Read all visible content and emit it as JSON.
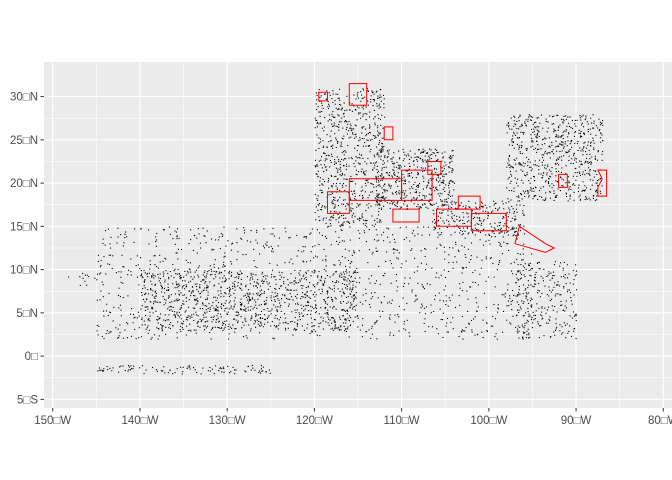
{
  "chart_data": {
    "type": "scatter",
    "title": "",
    "xlabel": "",
    "ylabel": "",
    "xlim": [
      -151,
      -79
    ],
    "ylim": [
      -6,
      34
    ],
    "grid": true,
    "panel_color": "#ebebeb",
    "grid_color": "#ffffff",
    "point_color": "#000000",
    "polygon_color": "#ff0000",
    "x_ticks": [
      {
        "value": -150,
        "label": "150□W"
      },
      {
        "value": -140,
        "label": "140□W"
      },
      {
        "value": -130,
        "label": "130□W"
      },
      {
        "value": -120,
        "label": "120□W"
      },
      {
        "value": -110,
        "label": "110□W"
      },
      {
        "value": -100,
        "label": "100□W"
      },
      {
        "value": -90,
        "label": "90□W"
      },
      {
        "value": -80,
        "label": "80□W"
      }
    ],
    "y_ticks": [
      {
        "value": 30,
        "label": "30□N"
      },
      {
        "value": 25,
        "label": "25□N"
      },
      {
        "value": 20,
        "label": "20□N"
      },
      {
        "value": 15,
        "label": "15□N"
      },
      {
        "value": 10,
        "label": "10□N"
      },
      {
        "value": 5,
        "label": "5□N"
      },
      {
        "value": 0,
        "label": "0□"
      },
      {
        "value": -5,
        "label": "5□S"
      }
    ],
    "point_clusters": [
      {
        "lon": [
          -120,
          -112
        ],
        "lat": [
          15,
          31
        ],
        "n": 700
      },
      {
        "lon": [
          -113,
          -104
        ],
        "lat": [
          17,
          24
        ],
        "n": 450
      },
      {
        "lon": [
          -107,
          -96
        ],
        "lat": [
          14,
          18
        ],
        "n": 250
      },
      {
        "lon": [
          -98,
          -87
        ],
        "lat": [
          18,
          28
        ],
        "n": 650
      },
      {
        "lon": [
          -140,
          -115
        ],
        "lat": [
          3,
          10
        ],
        "n": 900
      },
      {
        "lon": [
          -145,
          -95
        ],
        "lat": [
          2,
          15
        ],
        "n": 1100
      },
      {
        "lon": [
          -97,
          -90
        ],
        "lat": [
          2,
          11
        ],
        "n": 250
      },
      {
        "lon": [
          -145,
          -125
        ],
        "lat": [
          -2,
          -1
        ],
        "n": 100
      },
      {
        "lon": [
          -149,
          -145
        ],
        "lat": [
          8,
          10
        ],
        "n": 12
      }
    ],
    "polygons": [
      {
        "points": [
          [
            -116,
            18
          ],
          [
            -110,
            18
          ],
          [
            -110,
            20.5
          ],
          [
            -116,
            20.5
          ]
        ]
      },
      {
        "points": [
          [
            -118.5,
            16.5
          ],
          [
            -116,
            16.5
          ],
          [
            -116,
            19
          ],
          [
            -118.5,
            19
          ]
        ]
      },
      {
        "points": [
          [
            -111,
            15.5
          ],
          [
            -108,
            15.5
          ],
          [
            -108,
            17
          ],
          [
            -111,
            17
          ]
        ]
      },
      {
        "points": [
          [
            -110,
            18
          ],
          [
            -106.5,
            18
          ],
          [
            -106.5,
            21.5
          ],
          [
            -110,
            21.5
          ]
        ]
      },
      {
        "points": [
          [
            -106,
            15
          ],
          [
            -102,
            15
          ],
          [
            -102,
            17
          ],
          [
            -106,
            17
          ]
        ]
      },
      {
        "points": [
          [
            -102,
            14.5
          ],
          [
            -98,
            14.5
          ],
          [
            -98,
            16.5
          ],
          [
            -102,
            16.5
          ]
        ]
      },
      {
        "points": [
          [
            -96.5,
            15
          ],
          [
            -93.5,
            13
          ],
          [
            -92.5,
            12.5
          ],
          [
            -93.5,
            12
          ],
          [
            -97,
            13
          ]
        ]
      },
      {
        "points": [
          [
            -87.5,
            21.5
          ],
          [
            -86.5,
            21.5
          ],
          [
            -86.5,
            18.5
          ],
          [
            -87.5,
            18.5
          ],
          [
            -87.5,
            19.5
          ],
          [
            -87,
            20.5
          ]
        ]
      },
      {
        "points": [
          [
            -92,
            21
          ],
          [
            -91,
            21
          ],
          [
            -91,
            19.5
          ],
          [
            -92,
            19.5
          ]
        ]
      },
      {
        "points": [
          [
            -116,
            29
          ],
          [
            -114,
            29
          ],
          [
            -114,
            31.5
          ],
          [
            -116,
            31.5
          ]
        ]
      },
      {
        "points": [
          [
            -112,
            25
          ],
          [
            -111,
            25
          ],
          [
            -111,
            26.5
          ],
          [
            -112,
            26.5
          ]
        ]
      },
      {
        "points": [
          [
            -107,
            21
          ],
          [
            -105.5,
            21
          ],
          [
            -105.5,
            22.5
          ],
          [
            -107,
            22.5
          ]
        ]
      },
      {
        "points": [
          [
            -119.5,
            29.5
          ],
          [
            -118.5,
            29.5
          ],
          [
            -118.5,
            30.5
          ],
          [
            -119.5,
            30.5
          ]
        ]
      },
      {
        "points": [
          [
            -103.5,
            17
          ],
          [
            -101,
            17
          ],
          [
            -101,
            18.5
          ],
          [
            -103.5,
            18.5
          ]
        ]
      }
    ]
  }
}
